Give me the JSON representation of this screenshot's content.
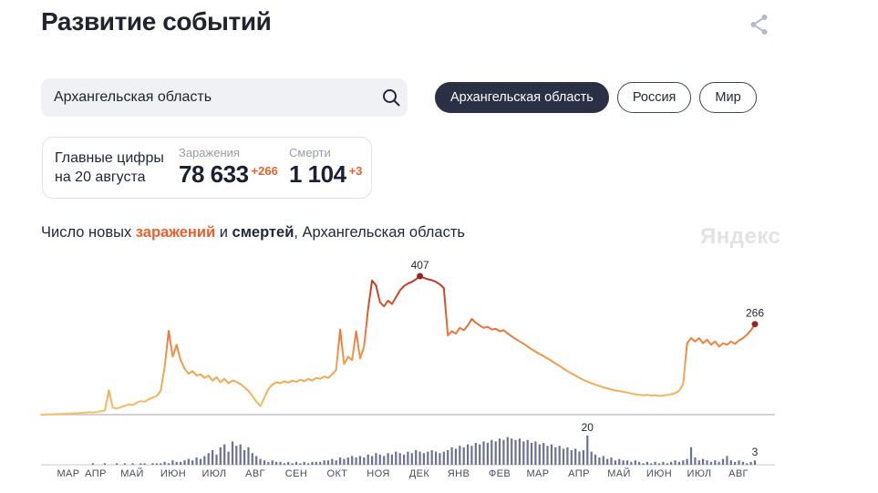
{
  "page": {
    "title": "Развитие событий"
  },
  "icons": {
    "share": "share-icon",
    "search": "search-icon"
  },
  "search": {
    "value": "Архангельская область"
  },
  "tabs": [
    {
      "label": "Архангельская область",
      "selected": true
    },
    {
      "label": "Россия",
      "selected": false
    },
    {
      "label": "Мир",
      "selected": false
    }
  ],
  "stats": {
    "card_title_line1": "Главные цифры",
    "card_title_line2": "на 20 августа",
    "infections": {
      "label": "Заражения",
      "value": "78 633",
      "delta": "+266"
    },
    "deaths": {
      "label": "Смерти",
      "value": "1 104",
      "delta": "+3"
    }
  },
  "caption": {
    "prefix": "Число новых ",
    "infections_word": "заражений",
    "middle": " и ",
    "deaths_word": "смертей",
    "suffix": ", Архангельская область"
  },
  "watermark": "Яндекс",
  "colors": {
    "accent_orange": "#e8612f",
    "dark_navy": "#2b3044",
    "bar_slate": "#6b7191",
    "line_low": "#f3c169",
    "line_mid": "#e8763c",
    "line_high": "#b23222",
    "marker": "#8e2a1f",
    "axis": "#c2c2c6"
  },
  "chart_data": [
    {
      "type": "line",
      "name": "Заражения",
      "title": "Число новых заражений, Архангельская область",
      "x_range": [
        "МАР 2020",
        "АВГ 2021"
      ],
      "ylim": [
        0,
        407
      ],
      "grid": false,
      "categories": [
        "МАР",
        "АПР",
        "МАЙ",
        "ИЮН",
        "ИЮЛ",
        "АВГ",
        "СЕН",
        "ОКТ",
        "НОЯ",
        "ДЕК",
        "ЯНВ",
        "ФЕВ",
        "МАР",
        "АПР",
        "МАЙ",
        "ИЮН",
        "ИЮЛ",
        "АВГ"
      ],
      "values": [
        0,
        0,
        1,
        1,
        2,
        2,
        3,
        3,
        4,
        4,
        5,
        6,
        7,
        6,
        8,
        10,
        12,
        72,
        20,
        18,
        22,
        26,
        30,
        28,
        35,
        40,
        38,
        45,
        50,
        55,
        70,
        140,
        246,
        170,
        205,
        160,
        135,
        120,
        128,
        115,
        118,
        108,
        115,
        100,
        110,
        95,
        105,
        92,
        100,
        96,
        90,
        80,
        70,
        55,
        38,
        25,
        50,
        75,
        88,
        95,
        92,
        98,
        94,
        100,
        96,
        103,
        98,
        105,
        100,
        108,
        105,
        112,
        108,
        118,
        132,
        250,
        148,
        170,
        160,
        245,
        165,
        200,
        310,
        394,
        380,
        330,
        318,
        335,
        325,
        345,
        365,
        378,
        385,
        390,
        398,
        407,
        402,
        398,
        395,
        390,
        383,
        372,
        233,
        245,
        238,
        255,
        248,
        262,
        281,
        270,
        262,
        255,
        258,
        250,
        252,
        245,
        248,
        238,
        230,
        222,
        215,
        208,
        200,
        192,
        185,
        178,
        172,
        165,
        158,
        150,
        143,
        135,
        128,
        121,
        115,
        108,
        102,
        97,
        92,
        88,
        84,
        80,
        77,
        74,
        71,
        69,
        67,
        65,
        62,
        60,
        58,
        57,
        58,
        56,
        57,
        55,
        56,
        58,
        60,
        63,
        70,
        90,
        210,
        225,
        215,
        225,
        210,
        220,
        205,
        215,
        200,
        210,
        205,
        215,
        208,
        218,
        225,
        235,
        248,
        266
      ],
      "annotations": [
        {
          "label": "407",
          "index": 95,
          "value": 407
        },
        {
          "label": "266",
          "index": 179,
          "value": 266
        }
      ]
    },
    {
      "type": "bar",
      "name": "Смерти",
      "title": "Число новых смертей, Архангельская область",
      "x_range": [
        "МАР 2020",
        "АВГ 2021"
      ],
      "ylim": [
        0,
        20
      ],
      "grid": false,
      "categories": [
        "МАР",
        "АПР",
        "МАЙ",
        "ИЮН",
        "ИЮЛ",
        "АВГ",
        "СЕН",
        "ОКТ",
        "НОЯ",
        "ДЕК",
        "ЯНВ",
        "ФЕВ",
        "МАР",
        "АПР",
        "МАЙ",
        "ИЮН",
        "ИЮЛ",
        "АВГ"
      ],
      "values": [
        0,
        0,
        0,
        0,
        0,
        0,
        0,
        0,
        0,
        0,
        0,
        0,
        0,
        1,
        0,
        0,
        1,
        0,
        0,
        1,
        0,
        1,
        0,
        1,
        0,
        1,
        1,
        0,
        1,
        1,
        1,
        2,
        1,
        3,
        2,
        2,
        3,
        4,
        3,
        5,
        4,
        6,
        8,
        10,
        7,
        12,
        14,
        9,
        16,
        13,
        14,
        10,
        12,
        8,
        6,
        4,
        3,
        2,
        3,
        2,
        2,
        1,
        2,
        1,
        2,
        1,
        2,
        1,
        2,
        2,
        2,
        3,
        3,
        4,
        3,
        5,
        4,
        5,
        6,
        5,
        6,
        5,
        7,
        6,
        8,
        7,
        6,
        8,
        7,
        9,
        8,
        7,
        9,
        8,
        10,
        9,
        8,
        9,
        10,
        9,
        8,
        9,
        10,
        12,
        11,
        13,
        12,
        14,
        13,
        15,
        14,
        16,
        15,
        17,
        16,
        18,
        17,
        19,
        18,
        17,
        18,
        16,
        17,
        15,
        16,
        14,
        15,
        13,
        14,
        12,
        13,
        11,
        12,
        10,
        11,
        9,
        10,
        20,
        9,
        7,
        5,
        6,
        4,
        5,
        3,
        4,
        3,
        3,
        2,
        3,
        2,
        1,
        2,
        1,
        2,
        1,
        2,
        1,
        2,
        3,
        2,
        3,
        4,
        12,
        5,
        3,
        4,
        3,
        2,
        3,
        2,
        4,
        6,
        3,
        2,
        3,
        2,
        1,
        2,
        3
      ],
      "annotations": [
        {
          "label": "20",
          "index": 137,
          "value": 20
        },
        {
          "label": "3",
          "index": 179,
          "value": 3
        }
      ]
    }
  ]
}
